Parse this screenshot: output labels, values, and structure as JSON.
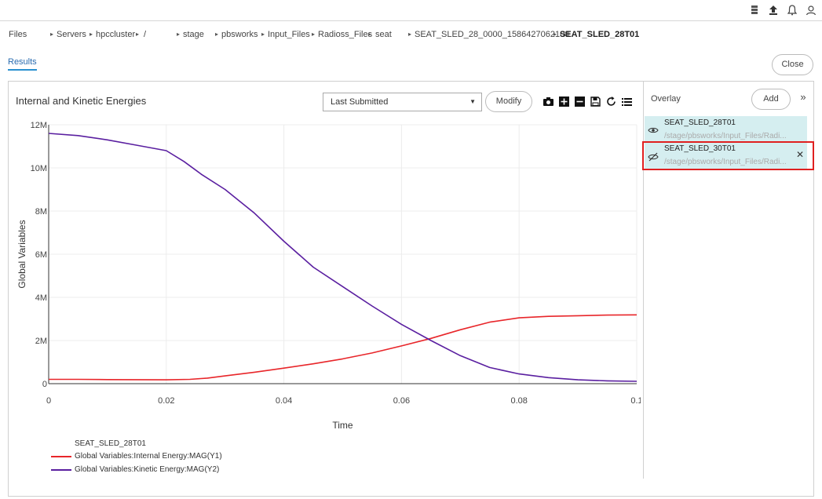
{
  "topbar": {
    "icons": [
      "server-stack-icon",
      "upload-icon",
      "bell-icon",
      "user-icon"
    ]
  },
  "breadcrumb": {
    "items": [
      "Files",
      "Servers",
      "hpccluster",
      "/",
      "stage",
      "pbsworks",
      "Input_Files",
      "Radioss_Files",
      "seat",
      "SEAT_SLED_28_0000_1586427062100",
      "SEAT_SLED_28T01"
    ]
  },
  "tabs": {
    "results": "Results"
  },
  "header": {
    "close_label": "Close"
  },
  "chart_panel": {
    "title": "Internal and Kinetic Energies",
    "dropdown_value": "Last Submitted",
    "modify_label": "Modify",
    "tools": [
      "camera-icon",
      "zoom-in-icon",
      "zoom-out-icon",
      "save-icon",
      "reset-icon",
      "list-icon"
    ]
  },
  "chart_data": {
    "type": "line",
    "xlabel": "Time",
    "ylabel": "Global Variables",
    "xlim": [
      0,
      0.1
    ],
    "ylim": [
      0,
      12000000
    ],
    "x_ticks": [
      "0",
      "0.02",
      "0.04",
      "0.06",
      "0.08",
      "0.1"
    ],
    "y_ticks": [
      "0",
      "2M",
      "4M",
      "6M",
      "8M",
      "10M",
      "12M"
    ],
    "grid": true,
    "legend_title": "SEAT_SLED_28T01",
    "legend_position": "bottom-left",
    "series": [
      {
        "name": "Global Variables:Internal Energy:MAG(Y1)",
        "color": "#e8262a",
        "x": [
          0,
          0.005,
          0.01,
          0.015,
          0.02,
          0.024,
          0.027,
          0.03,
          0.035,
          0.04,
          0.045,
          0.05,
          0.055,
          0.06,
          0.065,
          0.07,
          0.075,
          0.08,
          0.085,
          0.09,
          0.095,
          0.1
        ],
        "y": [
          200000,
          200000,
          190000,
          185000,
          180000,
          200000,
          260000,
          360000,
          530000,
          720000,
          920000,
          1150000,
          1420000,
          1750000,
          2100000,
          2500000,
          2850000,
          3050000,
          3120000,
          3150000,
          3180000,
          3190000
        ]
      },
      {
        "name": "Global Variables:Kinetic Energy:MAG(Y2)",
        "color": "#5a1fa0",
        "x": [
          0,
          0.005,
          0.01,
          0.015,
          0.02,
          0.023,
          0.026,
          0.03,
          0.035,
          0.04,
          0.045,
          0.05,
          0.055,
          0.06,
          0.065,
          0.07,
          0.075,
          0.08,
          0.085,
          0.09,
          0.095,
          0.1
        ],
        "y": [
          11600000,
          11500000,
          11300000,
          11050000,
          10800000,
          10300000,
          9700000,
          9000000,
          7900000,
          6600000,
          5400000,
          4500000,
          3600000,
          2750000,
          2000000,
          1300000,
          750000,
          450000,
          280000,
          180000,
          130000,
          110000
        ]
      }
    ]
  },
  "overlay": {
    "title": "Overlay",
    "add_label": "Add",
    "expand_glyph": "»",
    "items": [
      {
        "name": "SEAT_SLED_28T01",
        "path": "/stage/pbsworks/Input_Files/Radi..."
      },
      {
        "name": "SEAT_SLED_30T01",
        "path": "/stage/pbsworks/Input_Files/Radi..."
      }
    ],
    "remove_glyph": "✕"
  }
}
